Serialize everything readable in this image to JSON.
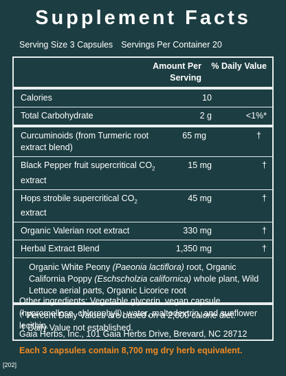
{
  "title": "Supplement Facts",
  "serving_size": "Serving Size 3 Capsules",
  "servings_per_container": "Servings Per Container 20",
  "table": {
    "header": {
      "amount": "Amount Per Serving",
      "dv": "% Daily Value"
    },
    "rows": [
      {
        "name": {
          "text": "Calories"
        },
        "amount": "10"
      },
      {
        "name": {
          "text": "Total Carbohydrate"
        },
        "amount": "2 g",
        "dv": "<1%*"
      },
      {
        "name": {
          "text": "Curcuminoids (from Turmeric root extract blend)"
        },
        "amount": "65 mg",
        "dv": "†"
      },
      {
        "name": {
          "text": "Black Pepper fruit supercritical CO",
          "sub": "2",
          "after": " extract"
        },
        "amount": "15 mg",
        "dv": "†"
      },
      {
        "name": {
          "text": "Hops strobile supercritical CO",
          "sub": "2",
          "after": " extract"
        },
        "amount": "45 mg",
        "dv": "†"
      },
      {
        "name": {
          "text": "Organic Valerian root extract"
        },
        "amount": "330 mg",
        "dv": "†"
      },
      {
        "name": {
          "text": "Herbal Extract Blend"
        },
        "amount": "1,350 mg",
        "dv": "†"
      }
    ],
    "blend_description": [
      {
        "text": "Organic White Peony "
      },
      {
        "text": "(Paeonia lactiflora)",
        "italic": true
      },
      {
        "text": " root, Organic California Poppy "
      },
      {
        "text": "(Eschscholzia californica)",
        "italic": true
      },
      {
        "text": " whole plant, Wild Lettuce aerial parts, Organic Licorice root"
      }
    ],
    "footnotes": [
      "* Percent Daily Values are based on a 2,000 calorie diet.",
      "† Daily Value not established."
    ]
  },
  "other_ingredients": "Other ingredients: Vegetable glycerin, vegan capsule (hypromellose, chlorophyll), water, maltodextrin, and sunflower lecithin.",
  "manufacturer": "Gaia Herbs, Inc., 101 Gaia Herbs Drive, Brevard, NC 28712",
  "claim": "Each 3 capsules contain 8,700 mg dry herb equivalent.",
  "code": "[202]"
}
